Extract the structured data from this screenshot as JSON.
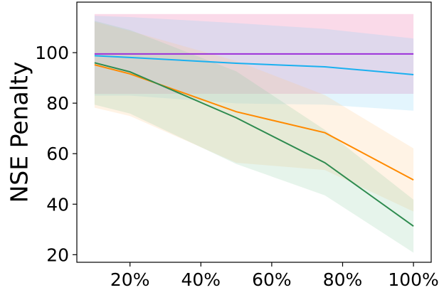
{
  "chart_data": {
    "type": "line",
    "title": "",
    "xlabel": "",
    "ylabel": "NSE Penalty",
    "xlim": [
      0.05,
      1.05
    ],
    "ylim": [
      17,
      120
    ],
    "xticks": [
      {
        "value": 0.2,
        "label": "20%"
      },
      {
        "value": 0.4,
        "label": "40%"
      },
      {
        "value": 0.6,
        "label": "60%"
      },
      {
        "value": 0.8,
        "label": "80%"
      },
      {
        "value": 1.0,
        "label": "100%"
      }
    ],
    "yticks": [
      {
        "value": 20,
        "label": "20"
      },
      {
        "value": 40,
        "label": "40"
      },
      {
        "value": 60,
        "label": "60"
      },
      {
        "value": 80,
        "label": "80"
      },
      {
        "value": 100,
        "label": "100"
      }
    ],
    "grid": false,
    "legend": "none",
    "x": [
      0.1,
      0.2,
      0.5,
      0.75,
      1.0
    ],
    "series": [
      {
        "color": "#9b30d9",
        "band_color": "#e8559a",
        "values": [
          99.5,
          99.5,
          99.5,
          99.5,
          99.5
        ],
        "lower": [
          83.7,
          83.7,
          83.7,
          83.7,
          83.7
        ],
        "upper": [
          115.3,
          115.3,
          115.3,
          115.3,
          115.3
        ]
      },
      {
        "color": "#1ab0f0",
        "band_color": "#7fd3f5",
        "values": [
          98.8,
          98.1,
          95.8,
          94.4,
          91.3
        ],
        "lower": [
          83.0,
          83.0,
          79.9,
          79.4,
          77.0
        ],
        "upper": [
          114.6,
          114.1,
          111.7,
          109.4,
          105.6
        ]
      },
      {
        "color": "#ff8a00",
        "band_color": "#ffc98a",
        "values": [
          95.2,
          91.6,
          76.6,
          68.3,
          49.6
        ],
        "lower": [
          78.2,
          74.9,
          56.4,
          53.5,
          37.1
        ],
        "upper": [
          112.2,
          108.6,
          96.7,
          83.2,
          62.1
        ]
      },
      {
        "color": "#2e8b4f",
        "band_color": "#8fcfa3",
        "values": [
          96.0,
          92.4,
          74.2,
          56.4,
          31.3
        ],
        "lower": [
          79.4,
          75.9,
          55.9,
          43.5,
          20.8
        ],
        "upper": [
          112.6,
          109.0,
          92.6,
          69.4,
          41.8
        ]
      }
    ]
  }
}
